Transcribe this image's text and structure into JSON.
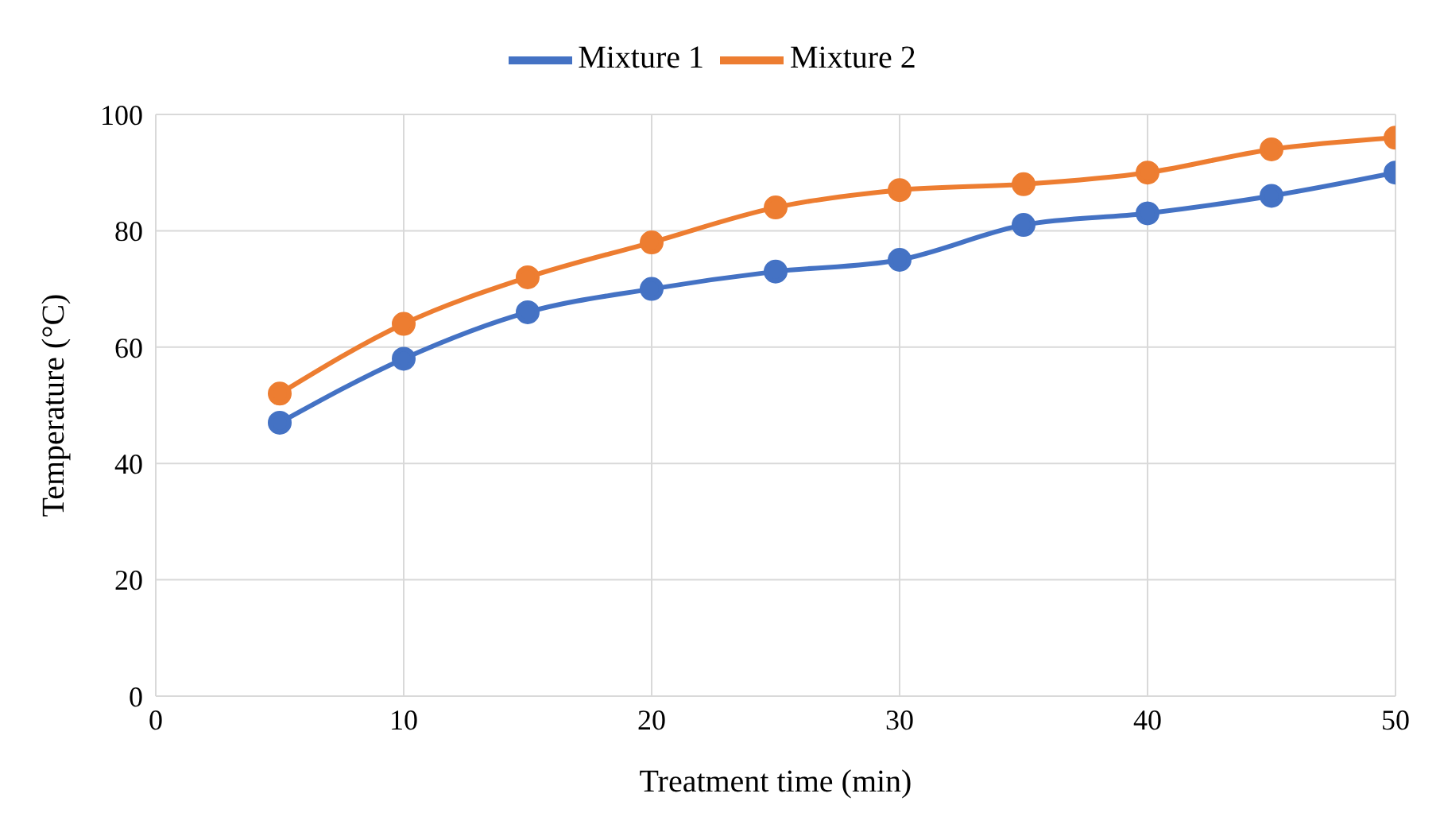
{
  "chart_data": {
    "type": "line",
    "xlabel": "Treatment time (min)",
    "ylabel": "Temperature (°C)",
    "x": [
      5,
      10,
      15,
      20,
      25,
      30,
      35,
      40,
      45,
      50
    ],
    "series": [
      {
        "name": "Mixture 1",
        "color": "#4472c4",
        "values": [
          47,
          58,
          66,
          70,
          73,
          75,
          81,
          83,
          86,
          90
        ]
      },
      {
        "name": "Mixture 2",
        "color": "#ed7d31",
        "values": [
          52,
          64,
          72,
          78,
          84,
          87,
          88,
          90,
          94,
          96
        ]
      }
    ],
    "xlim": [
      0,
      50
    ],
    "xticks": [
      0,
      10,
      20,
      30,
      40,
      50
    ],
    "ylim": [
      0,
      100
    ],
    "yticks": [
      0,
      20,
      40,
      60,
      80,
      100
    ],
    "grid": true,
    "legend": "top",
    "marker": "circle",
    "line_style": "solid"
  }
}
